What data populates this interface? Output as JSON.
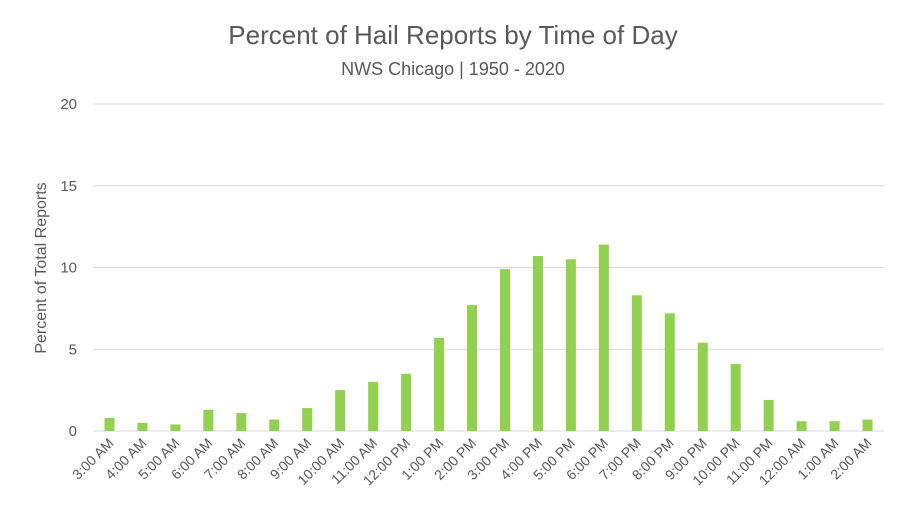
{
  "chart_data": {
    "type": "bar",
    "title": "Percent of Hail Reports by Time of Day",
    "subtitle": "NWS Chicago | 1950 - 2020",
    "xlabel": "",
    "ylabel": "Percent of Total Reports",
    "ylim": [
      0,
      20
    ],
    "yticks": [
      "0",
      "5",
      "10",
      "15",
      "20"
    ],
    "grid": true,
    "bar_color": "#92d050",
    "categories": [
      "3:00 AM",
      "4:00 AM",
      "5:00 AM",
      "6:00 AM",
      "7:00 AM",
      "8:00 AM",
      "9:00 AM",
      "10:00 AM",
      "11:00 AM",
      "12:00 PM",
      "1:00 PM",
      "2:00 PM",
      "3:00 PM",
      "4:00 PM",
      "5:00 PM",
      "6:00 PM",
      "7:00 PM",
      "8:00 PM",
      "9:00 PM",
      "10:00 PM",
      "11:00 PM",
      "12:00 AM",
      "1:00 AM",
      "2:00 AM"
    ],
    "values": [
      0.8,
      0.5,
      0.4,
      1.3,
      1.1,
      0.7,
      1.4,
      2.5,
      3.0,
      3.5,
      5.7,
      7.7,
      9.9,
      10.7,
      10.5,
      11.4,
      8.3,
      7.2,
      5.4,
      4.1,
      1.9,
      0.6,
      0.6,
      0.7
    ]
  }
}
